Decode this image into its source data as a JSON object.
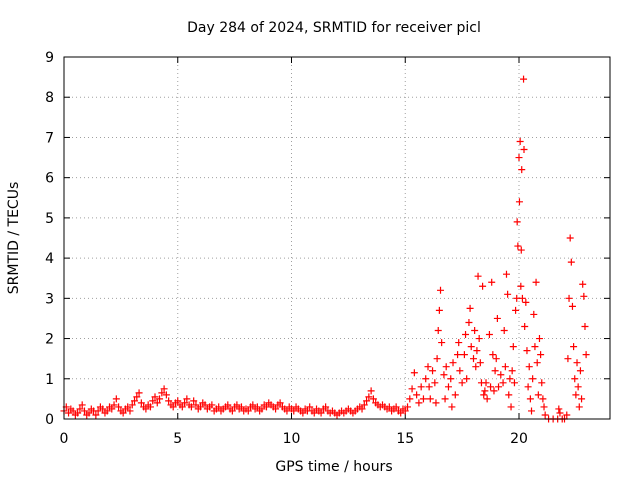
{
  "chart_data": {
    "type": "scatter",
    "title": "Day 284 of 2024, SRMTID for receiver picl",
    "xlabel": "GPS time / hours",
    "ylabel": "SRMTID / TECUs",
    "xlim": [
      0,
      24
    ],
    "ylim": [
      0,
      9
    ],
    "xticks": [
      0,
      5,
      10,
      15,
      20
    ],
    "yticks": [
      0,
      1,
      2,
      3,
      4,
      5,
      6,
      7,
      8,
      9
    ],
    "grid": true,
    "marker": "plus",
    "color": "#ff0000",
    "series": [
      {
        "name": "SRMTID",
        "points": [
          [
            0.0,
            0.2
          ],
          [
            0.1,
            0.3
          ],
          [
            0.2,
            0.15
          ],
          [
            0.3,
            0.25
          ],
          [
            0.4,
            0.2
          ],
          [
            0.5,
            0.1
          ],
          [
            0.6,
            0.15
          ],
          [
            0.7,
            0.25
          ],
          [
            0.8,
            0.35
          ],
          [
            0.9,
            0.2
          ],
          [
            1.0,
            0.1
          ],
          [
            1.1,
            0.15
          ],
          [
            1.2,
            0.25
          ],
          [
            1.3,
            0.2
          ],
          [
            1.4,
            0.1
          ],
          [
            1.5,
            0.2
          ],
          [
            1.6,
            0.3
          ],
          [
            1.7,
            0.25
          ],
          [
            1.8,
            0.15
          ],
          [
            1.9,
            0.2
          ],
          [
            2.0,
            0.3
          ],
          [
            2.1,
            0.25
          ],
          [
            2.2,
            0.35
          ],
          [
            2.3,
            0.5
          ],
          [
            2.4,
            0.3
          ],
          [
            2.5,
            0.2
          ],
          [
            2.6,
            0.15
          ],
          [
            2.7,
            0.25
          ],
          [
            2.8,
            0.3
          ],
          [
            2.9,
            0.2
          ],
          [
            3.0,
            0.35
          ],
          [
            3.1,
            0.45
          ],
          [
            3.2,
            0.55
          ],
          [
            3.3,
            0.65
          ],
          [
            3.4,
            0.4
          ],
          [
            3.5,
            0.3
          ],
          [
            3.6,
            0.25
          ],
          [
            3.7,
            0.35
          ],
          [
            3.8,
            0.3
          ],
          [
            3.9,
            0.45
          ],
          [
            4.0,
            0.55
          ],
          [
            4.1,
            0.4
          ],
          [
            4.2,
            0.5
          ],
          [
            4.3,
            0.65
          ],
          [
            4.4,
            0.75
          ],
          [
            4.5,
            0.6
          ],
          [
            4.6,
            0.45
          ],
          [
            4.7,
            0.35
          ],
          [
            4.8,
            0.3
          ],
          [
            4.9,
            0.4
          ],
          [
            5.0,
            0.45
          ],
          [
            5.1,
            0.35
          ],
          [
            5.2,
            0.3
          ],
          [
            5.3,
            0.4
          ],
          [
            5.4,
            0.5
          ],
          [
            5.5,
            0.35
          ],
          [
            5.6,
            0.3
          ],
          [
            5.7,
            0.45
          ],
          [
            5.8,
            0.35
          ],
          [
            5.9,
            0.25
          ],
          [
            6.0,
            0.3
          ],
          [
            6.1,
            0.4
          ],
          [
            6.2,
            0.35
          ],
          [
            6.3,
            0.25
          ],
          [
            6.4,
            0.3
          ],
          [
            6.5,
            0.35
          ],
          [
            6.6,
            0.2
          ],
          [
            6.7,
            0.25
          ],
          [
            6.8,
            0.3
          ],
          [
            6.9,
            0.2
          ],
          [
            7.0,
            0.25
          ],
          [
            7.1,
            0.3
          ],
          [
            7.2,
            0.35
          ],
          [
            7.3,
            0.25
          ],
          [
            7.4,
            0.2
          ],
          [
            7.5,
            0.3
          ],
          [
            7.6,
            0.35
          ],
          [
            7.7,
            0.25
          ],
          [
            7.8,
            0.3
          ],
          [
            7.9,
            0.2
          ],
          [
            8.0,
            0.25
          ],
          [
            8.1,
            0.2
          ],
          [
            8.2,
            0.3
          ],
          [
            8.3,
            0.35
          ],
          [
            8.4,
            0.25
          ],
          [
            8.5,
            0.3
          ],
          [
            8.6,
            0.2
          ],
          [
            8.7,
            0.25
          ],
          [
            8.8,
            0.35
          ],
          [
            8.9,
            0.3
          ],
          [
            9.0,
            0.4
          ],
          [
            9.1,
            0.35
          ],
          [
            9.2,
            0.3
          ],
          [
            9.3,
            0.25
          ],
          [
            9.4,
            0.35
          ],
          [
            9.5,
            0.4
          ],
          [
            9.6,
            0.3
          ],
          [
            9.7,
            0.25
          ],
          [
            9.8,
            0.2
          ],
          [
            9.9,
            0.3
          ],
          [
            10.0,
            0.25
          ],
          [
            10.1,
            0.2
          ],
          [
            10.2,
            0.3
          ],
          [
            10.3,
            0.25
          ],
          [
            10.4,
            0.2
          ],
          [
            10.5,
            0.15
          ],
          [
            10.6,
            0.25
          ],
          [
            10.7,
            0.2
          ],
          [
            10.8,
            0.3
          ],
          [
            10.9,
            0.2
          ],
          [
            11.0,
            0.15
          ],
          [
            11.1,
            0.25
          ],
          [
            11.2,
            0.2
          ],
          [
            11.3,
            0.15
          ],
          [
            11.4,
            0.25
          ],
          [
            11.5,
            0.3
          ],
          [
            11.6,
            0.2
          ],
          [
            11.7,
            0.15
          ],
          [
            11.8,
            0.2
          ],
          [
            11.9,
            0.15
          ],
          [
            12.0,
            0.1
          ],
          [
            12.1,
            0.15
          ],
          [
            12.2,
            0.2
          ],
          [
            12.3,
            0.15
          ],
          [
            12.4,
            0.2
          ],
          [
            12.5,
            0.25
          ],
          [
            12.6,
            0.2
          ],
          [
            12.7,
            0.15
          ],
          [
            12.8,
            0.2
          ],
          [
            12.9,
            0.25
          ],
          [
            13.0,
            0.3
          ],
          [
            13.1,
            0.25
          ],
          [
            13.2,
            0.35
          ],
          [
            13.3,
            0.45
          ],
          [
            13.4,
            0.55
          ],
          [
            13.5,
            0.7
          ],
          [
            13.6,
            0.5
          ],
          [
            13.7,
            0.4
          ],
          [
            13.8,
            0.35
          ],
          [
            13.9,
            0.3
          ],
          [
            14.0,
            0.35
          ],
          [
            14.1,
            0.3
          ],
          [
            14.2,
            0.25
          ],
          [
            14.3,
            0.3
          ],
          [
            14.4,
            0.2
          ],
          [
            14.5,
            0.25
          ],
          [
            14.6,
            0.3
          ],
          [
            14.7,
            0.2
          ],
          [
            14.8,
            0.15
          ],
          [
            14.9,
            0.25
          ],
          [
            15.0,
            0.2
          ],
          [
            15.1,
            0.3
          ],
          [
            15.2,
            0.5
          ],
          [
            15.3,
            0.75
          ],
          [
            15.4,
            1.15
          ],
          [
            15.5,
            0.6
          ],
          [
            15.6,
            0.4
          ],
          [
            15.7,
            0.8
          ],
          [
            15.8,
            0.5
          ],
          [
            15.9,
            1.0
          ],
          [
            16.0,
            1.3
          ],
          [
            16.05,
            0.8
          ],
          [
            16.1,
            0.5
          ],
          [
            16.2,
            1.2
          ],
          [
            16.3,
            0.9
          ],
          [
            16.35,
            0.4
          ],
          [
            16.4,
            1.5
          ],
          [
            16.45,
            2.2
          ],
          [
            16.5,
            2.7
          ],
          [
            16.55,
            3.2
          ],
          [
            16.6,
            1.9
          ],
          [
            16.7,
            1.1
          ],
          [
            16.75,
            0.5
          ],
          [
            16.8,
            1.3
          ],
          [
            16.9,
            0.8
          ],
          [
            17.0,
            1.0
          ],
          [
            17.05,
            0.3
          ],
          [
            17.1,
            1.4
          ],
          [
            17.2,
            0.6
          ],
          [
            17.3,
            1.6
          ],
          [
            17.35,
            1.9
          ],
          [
            17.4,
            1.2
          ],
          [
            17.5,
            0.9
          ],
          [
            17.6,
            1.6
          ],
          [
            17.65,
            2.1
          ],
          [
            17.7,
            1.0
          ],
          [
            17.8,
            2.4
          ],
          [
            17.85,
            2.75
          ],
          [
            17.9,
            1.8
          ],
          [
            18.0,
            1.5
          ],
          [
            18.05,
            2.2
          ],
          [
            18.1,
            1.3
          ],
          [
            18.15,
            1.7
          ],
          [
            18.2,
            3.55
          ],
          [
            18.25,
            2.0
          ],
          [
            18.3,
            1.4
          ],
          [
            18.35,
            0.9
          ],
          [
            18.4,
            3.3
          ],
          [
            18.45,
            0.6
          ],
          [
            18.5,
            0.7
          ],
          [
            18.55,
            0.9
          ],
          [
            18.6,
            0.5
          ],
          [
            18.7,
            2.1
          ],
          [
            18.75,
            0.8
          ],
          [
            18.8,
            3.4
          ],
          [
            18.85,
            1.6
          ],
          [
            18.9,
            0.7
          ],
          [
            18.95,
            1.2
          ],
          [
            19.0,
            1.5
          ],
          [
            19.05,
            2.5
          ],
          [
            19.1,
            0.8
          ],
          [
            19.2,
            1.1
          ],
          [
            19.3,
            0.9
          ],
          [
            19.35,
            2.2
          ],
          [
            19.4,
            1.3
          ],
          [
            19.45,
            3.6
          ],
          [
            19.5,
            3.1
          ],
          [
            19.55,
            0.6
          ],
          [
            19.6,
            1.0
          ],
          [
            19.65,
            0.3
          ],
          [
            19.7,
            1.2
          ],
          [
            19.75,
            1.8
          ],
          [
            19.8,
            0.9
          ],
          [
            19.85,
            2.7
          ],
          [
            19.9,
            3.0
          ],
          [
            19.92,
            4.9
          ],
          [
            19.95,
            4.3
          ],
          [
            20.0,
            6.5
          ],
          [
            20.02,
            5.4
          ],
          [
            20.05,
            6.9
          ],
          [
            20.08,
            3.3
          ],
          [
            20.1,
            4.2
          ],
          [
            20.12,
            6.2
          ],
          [
            20.15,
            3.0
          ],
          [
            20.2,
            8.45
          ],
          [
            20.22,
            6.7
          ],
          [
            20.25,
            2.3
          ],
          [
            20.3,
            2.9
          ],
          [
            20.35,
            1.7
          ],
          [
            20.4,
            0.8
          ],
          [
            20.45,
            1.3
          ],
          [
            20.5,
            0.5
          ],
          [
            20.55,
            0.2
          ],
          [
            20.6,
            1.0
          ],
          [
            20.65,
            2.6
          ],
          [
            20.7,
            1.8
          ],
          [
            20.75,
            3.4
          ],
          [
            20.8,
            1.4
          ],
          [
            20.85,
            0.6
          ],
          [
            20.9,
            2.0
          ],
          [
            20.95,
            1.6
          ],
          [
            21.0,
            0.9
          ],
          [
            21.05,
            0.5
          ],
          [
            21.1,
            0.3
          ],
          [
            21.15,
            0.1
          ],
          [
            21.3,
            0.0
          ],
          [
            21.5,
            0.0
          ],
          [
            21.7,
            0.0
          ],
          [
            21.75,
            0.25
          ],
          [
            21.8,
            0.15
          ],
          [
            21.9,
            0.0
          ],
          [
            22.0,
            0.0
          ],
          [
            22.1,
            0.1
          ],
          [
            22.15,
            1.5
          ],
          [
            22.2,
            3.0
          ],
          [
            22.25,
            4.5
          ],
          [
            22.3,
            3.9
          ],
          [
            22.35,
            2.8
          ],
          [
            22.4,
            1.8
          ],
          [
            22.45,
            1.0
          ],
          [
            22.5,
            0.6
          ],
          [
            22.55,
            1.4
          ],
          [
            22.6,
            0.8
          ],
          [
            22.65,
            0.3
          ],
          [
            22.7,
            1.2
          ],
          [
            22.75,
            0.5
          ],
          [
            22.8,
            3.35
          ],
          [
            22.85,
            3.05
          ],
          [
            22.9,
            2.3
          ],
          [
            22.95,
            1.6
          ]
        ]
      }
    ]
  }
}
